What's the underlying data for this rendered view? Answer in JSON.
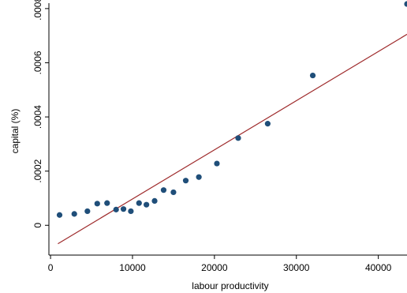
{
  "chart_data": {
    "type": "scatter",
    "title": "",
    "xlabel": "labour productivity",
    "ylabel": "capital  (%)",
    "xlim": [
      -200,
      43500
    ],
    "ylim": [
      -0.00011,
      0.00082
    ],
    "x_ticks": [
      0,
      10000,
      20000,
      30000,
      40000
    ],
    "x_tick_labels": [
      "0",
      "10000",
      "20000",
      "30000",
      "40000"
    ],
    "y_ticks": [
      0,
      0.0002,
      0.0004,
      0.0006,
      0.0008
    ],
    "y_tick_labels": [
      "0",
      ".0002",
      ".0004",
      ".0006",
      ".0008"
    ],
    "grid": false,
    "legend": "none",
    "colors": {
      "points": "#1f4e79",
      "fit_line": "#9e2a2b",
      "axis": "#000000"
    },
    "series": [
      {
        "type": "scatter",
        "x": [
          1100,
          2900,
          4500,
          5700,
          6900,
          8000,
          8900,
          9800,
          10800,
          11700,
          12700,
          13800,
          15000,
          16500,
          18100,
          20300,
          22900,
          26500,
          32000,
          43500
        ],
        "y": [
          3.8e-05,
          4.2e-05,
          5.2e-05,
          8e-05,
          8.2e-05,
          5.8e-05,
          6e-05,
          5.2e-05,
          8.2e-05,
          7.6e-05,
          9e-05,
          0.00013,
          0.000122,
          0.000165,
          0.000178,
          0.000228,
          0.000322,
          0.000375,
          0.000553,
          0.000817
        ]
      },
      {
        "type": "line",
        "x": [
          900,
          43500
        ],
        "y": [
          -6.8e-05,
          0.000705
        ]
      }
    ]
  }
}
